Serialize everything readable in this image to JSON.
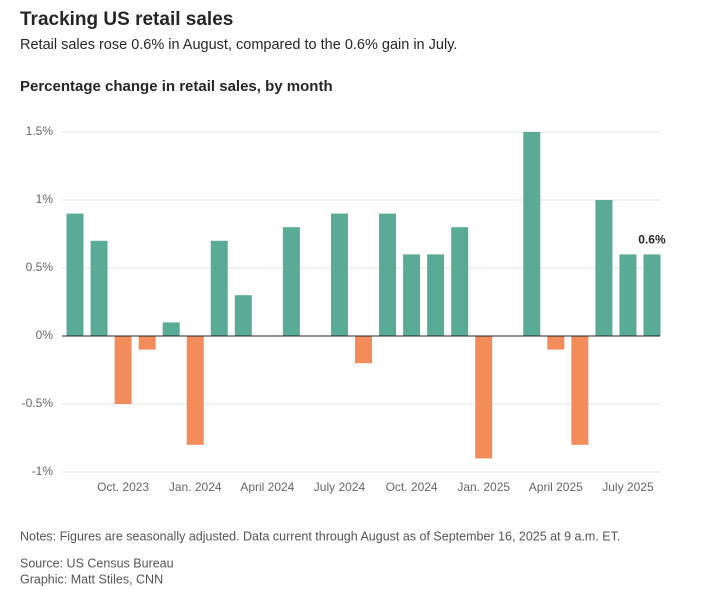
{
  "header": {
    "title": "Tracking US retail sales",
    "subtitle": "Retail sales rose 0.6% in August, compared to the 0.6% gain in July."
  },
  "chart_data": {
    "type": "bar",
    "title": "Percentage change in retail sales, by month",
    "categories": [
      null,
      null,
      "Oct. 2023",
      null,
      null,
      "Jan. 2024",
      null,
      null,
      "April 2024",
      null,
      null,
      "July 2024",
      null,
      null,
      "Oct. 2024",
      null,
      null,
      "Jan. 2025",
      null,
      null,
      "April 2025",
      null,
      null,
      "July 2025",
      null
    ],
    "values": [
      0.9,
      0.7,
      -0.5,
      -0.1,
      0.1,
      -0.8,
      0.7,
      0.3,
      0,
      0.8,
      0,
      0.9,
      -0.2,
      0.9,
      0.6,
      0.6,
      0.8,
      -0.9,
      0,
      1.5,
      -0.1,
      -0.8,
      1.0,
      0.6,
      0.6
    ],
    "value_labels": [
      null,
      null,
      null,
      null,
      null,
      null,
      null,
      null,
      null,
      null,
      null,
      null,
      null,
      null,
      null,
      null,
      null,
      null,
      null,
      null,
      null,
      null,
      null,
      null,
      "0.6%"
    ],
    "colors": {
      "positive": "#5aab96",
      "negative": "#f28c5a"
    },
    "ylim": [
      -1,
      1.5
    ],
    "yticks": [
      {
        "value": -1,
        "label": "-1%"
      },
      {
        "value": -0.5,
        "label": "-0.5%"
      },
      {
        "value": 0,
        "label": "0%"
      },
      {
        "value": 0.5,
        "label": "0.5%"
      },
      {
        "value": 1,
        "label": "1%"
      },
      {
        "value": 1.5,
        "label": "1.5%"
      }
    ],
    "grid": true
  },
  "footer": {
    "notes": "Notes: Figures are seasonally adjusted. Data current through August as of September 16, 2025 at 9 a.m. ET.",
    "source": "Source: US Census Bureau",
    "graphic": "Graphic: Matt Stiles, CNN"
  }
}
